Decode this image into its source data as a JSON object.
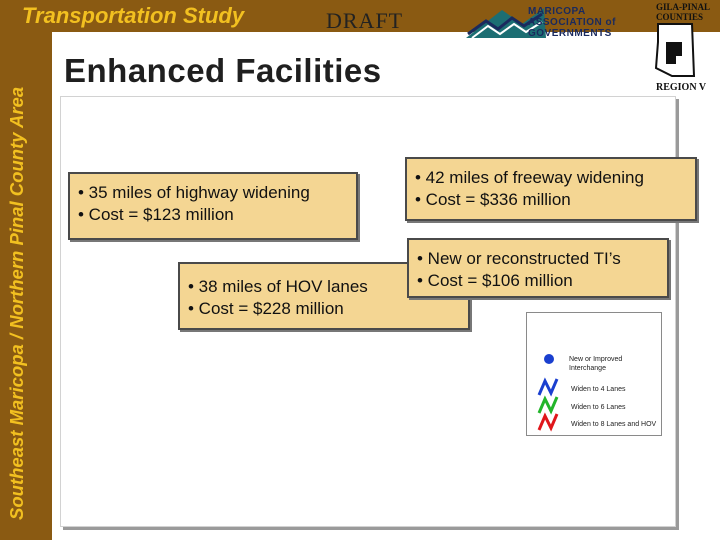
{
  "sidebar": {
    "vertical_label": "Southeast Maricopa / Northern Pinal County Area"
  },
  "header": {
    "study_label": "Transportation Study",
    "draft_label": "DRAFT",
    "title": "Enhanced Facilities"
  },
  "logos": {
    "mag": {
      "line1": "MARICOPA",
      "line2": "ASSOCIATION of",
      "line3": "GOVERNMENTS"
    },
    "gila_pinal": {
      "line1": "GILA-PINAL",
      "line2": "COUNTIES",
      "line3": "REGION V"
    }
  },
  "callouts": [
    {
      "line1": "• 35 miles of highway widening",
      "line2": "• Cost = $123 million"
    },
    {
      "line1": "• 42 miles of freeway widening",
      "line2": "• Cost = $336 million"
    },
    {
      "line1": "• 38 miles of HOV lanes",
      "line2": "• Cost = $228 million"
    },
    {
      "line1": "• New or reconstructed TI’s",
      "line2": "• Cost = $106 million"
    }
  ],
  "legend": {
    "items": [
      {
        "label_line1": "New or Improved",
        "label_line2": "Interchange",
        "icon": "blue-dot-icon",
        "color": "#1a3fcf"
      },
      {
        "label_line1": "Widen to 4 Lanes",
        "icon": "blue-zigzag-icon",
        "color": "#1a3fcf"
      },
      {
        "label_line1": "Widen to 6 Lanes",
        "icon": "green-zigzag-icon",
        "color": "#22b52a"
      },
      {
        "label_line1": "Widen to 8 Lanes and HOV",
        "icon": "red-zigzag-icon",
        "color": "#e0161b"
      }
    ]
  },
  "colors": {
    "brown": "#8a5a12",
    "gold": "#f2c020",
    "callout_fill": "#f4d693",
    "mag_teal": "#1c6e73",
    "mag_navy": "#1a2a5e"
  }
}
